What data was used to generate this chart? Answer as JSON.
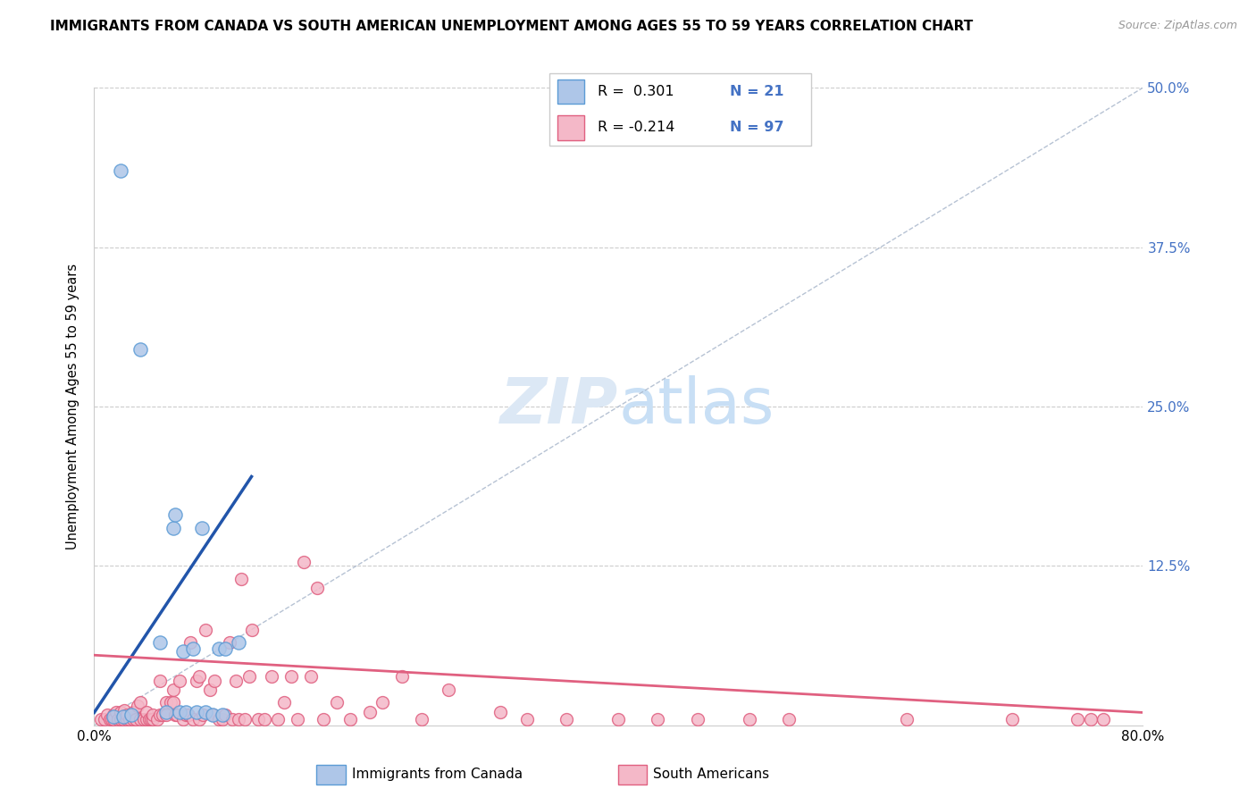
{
  "title": "IMMIGRANTS FROM CANADA VS SOUTH AMERICAN UNEMPLOYMENT AMONG AGES 55 TO 59 YEARS CORRELATION CHART",
  "source": "Source: ZipAtlas.com",
  "ylabel": "Unemployment Among Ages 55 to 59 years",
  "xlim": [
    0.0,
    0.8
  ],
  "ylim": [
    0.0,
    0.5
  ],
  "yticks_right": [
    0.0,
    0.125,
    0.25,
    0.375,
    0.5
  ],
  "ytick_labels_right": [
    "",
    "12.5%",
    "25.0%",
    "37.5%",
    "50.0%"
  ],
  "legend_r1_color": "#4472c4",
  "legend_r2_color": "#e05c7a",
  "canada_color": "#aec6e8",
  "canada_edge": "#5b9bd5",
  "south_color": "#f4b8c8",
  "south_edge": "#e06080",
  "trendline_canada_color": "#2255aa",
  "trendline_south_color": "#e06080",
  "diagonal_color": "#aab8cc",
  "watermark_color": "#dce8f5",
  "canada_r": 0.301,
  "south_r": -0.214,
  "canada_n": 21,
  "south_n": 97,
  "canada_trend_x0": 0.0,
  "canada_trend_y0": 0.01,
  "canada_trend_x1": 0.12,
  "canada_trend_y1": 0.195,
  "south_trend_x0": 0.0,
  "south_trend_y0": 0.055,
  "south_trend_x1": 0.8,
  "south_trend_y1": 0.01,
  "canada_scatter_x": [
    0.02,
    0.035,
    0.05,
    0.055,
    0.06,
    0.062,
    0.065,
    0.068,
    0.07,
    0.075,
    0.078,
    0.082,
    0.085,
    0.09,
    0.095,
    0.098,
    0.1,
    0.11,
    0.015,
    0.022,
    0.028
  ],
  "canada_scatter_y": [
    0.435,
    0.295,
    0.065,
    0.01,
    0.155,
    0.165,
    0.01,
    0.058,
    0.01,
    0.06,
    0.01,
    0.155,
    0.01,
    0.008,
    0.06,
    0.008,
    0.06,
    0.065,
    0.007,
    0.007,
    0.008
  ],
  "south_scatter_x": [
    0.005,
    0.008,
    0.01,
    0.012,
    0.013,
    0.015,
    0.015,
    0.017,
    0.018,
    0.02,
    0.02,
    0.022,
    0.023,
    0.025,
    0.025,
    0.027,
    0.028,
    0.03,
    0.03,
    0.032,
    0.033,
    0.035,
    0.035,
    0.038,
    0.04,
    0.04,
    0.042,
    0.043,
    0.045,
    0.045,
    0.048,
    0.05,
    0.05,
    0.052,
    0.055,
    0.055,
    0.058,
    0.06,
    0.06,
    0.062,
    0.063,
    0.065,
    0.068,
    0.07,
    0.072,
    0.073,
    0.075,
    0.078,
    0.08,
    0.08,
    0.083,
    0.085,
    0.088,
    0.09,
    0.092,
    0.095,
    0.098,
    0.1,
    0.103,
    0.105,
    0.108,
    0.11,
    0.112,
    0.115,
    0.118,
    0.12,
    0.125,
    0.13,
    0.135,
    0.14,
    0.145,
    0.15,
    0.155,
    0.16,
    0.165,
    0.17,
    0.175,
    0.185,
    0.195,
    0.21,
    0.22,
    0.235,
    0.25,
    0.27,
    0.31,
    0.33,
    0.36,
    0.4,
    0.43,
    0.46,
    0.5,
    0.53,
    0.62,
    0.7,
    0.75,
    0.76,
    0.77
  ],
  "south_scatter_y": [
    0.005,
    0.005,
    0.008,
    0.005,
    0.005,
    0.008,
    0.005,
    0.01,
    0.005,
    0.005,
    0.01,
    0.005,
    0.012,
    0.005,
    0.008,
    0.005,
    0.008,
    0.005,
    0.01,
    0.005,
    0.015,
    0.005,
    0.018,
    0.005,
    0.005,
    0.01,
    0.005,
    0.005,
    0.005,
    0.008,
    0.005,
    0.008,
    0.035,
    0.008,
    0.008,
    0.018,
    0.018,
    0.018,
    0.028,
    0.008,
    0.008,
    0.035,
    0.005,
    0.008,
    0.008,
    0.065,
    0.005,
    0.035,
    0.005,
    0.038,
    0.008,
    0.075,
    0.028,
    0.008,
    0.035,
    0.005,
    0.005,
    0.008,
    0.065,
    0.005,
    0.035,
    0.005,
    0.115,
    0.005,
    0.038,
    0.075,
    0.005,
    0.005,
    0.038,
    0.005,
    0.018,
    0.038,
    0.005,
    0.128,
    0.038,
    0.108,
    0.005,
    0.018,
    0.005,
    0.01,
    0.018,
    0.038,
    0.005,
    0.028,
    0.01,
    0.005,
    0.005,
    0.005,
    0.005,
    0.005,
    0.005,
    0.005,
    0.005,
    0.005,
    0.005,
    0.005,
    0.005
  ]
}
